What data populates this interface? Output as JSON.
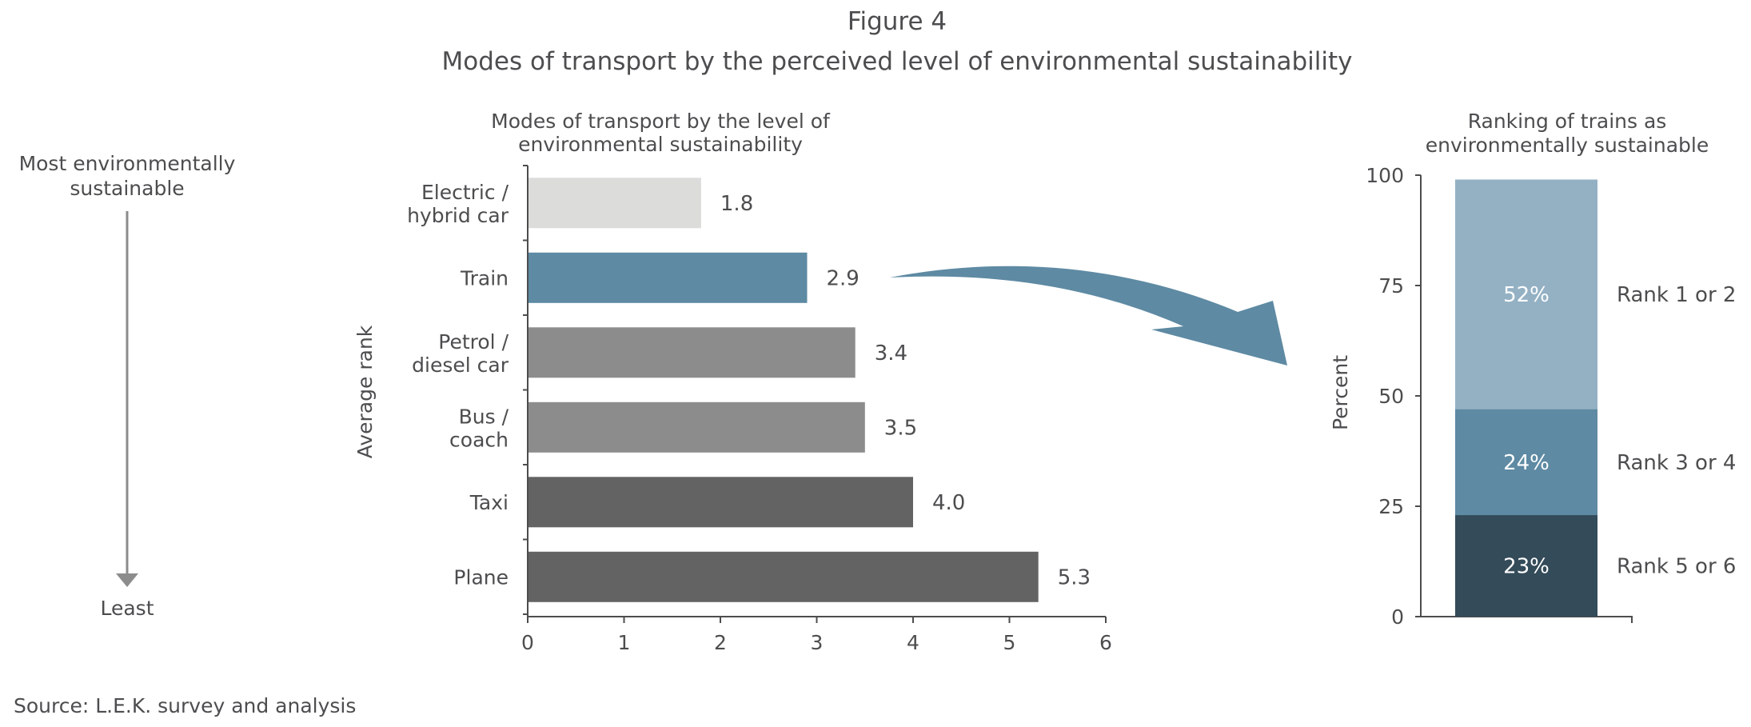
{
  "header": {
    "figure_label": "Figure 4",
    "title": "Modes of transport by the perceived level of environmental sustainability"
  },
  "scale_indicator": {
    "top_label_line1": "Most environmentally",
    "top_label_line2": "sustainable",
    "bottom_label": "Least"
  },
  "source": "Source: L.E.K. survey and analysis",
  "colors": {
    "light_grey": "#dcdcdb",
    "train_blue": "#5e8aa3",
    "mid_grey": "#8c8c8c",
    "dark_grey": "#636363",
    "light_blue": "#94b1c4",
    "dark_navy": "#344b59",
    "arrow": "#5e8aa3"
  },
  "chart_data": [
    {
      "type": "bar",
      "orientation": "horizontal",
      "title_line1": "Modes of transport by the level of",
      "title_line2": "environmental sustainability",
      "ylabel": "Average rank",
      "xlabel": "",
      "xlim": [
        0,
        6
      ],
      "xticks": [
        "0",
        "1",
        "2",
        "3",
        "4",
        "5",
        "6"
      ],
      "categories": [
        {
          "line1": "Electric /",
          "line2": "hybrid car"
        },
        {
          "line1": "Train",
          "line2": ""
        },
        {
          "line1": "Petrol /",
          "line2": "diesel car"
        },
        {
          "line1": "Bus /",
          "line2": "coach"
        },
        {
          "line1": "Taxi",
          "line2": ""
        },
        {
          "line1": "Plane",
          "line2": ""
        }
      ],
      "values": [
        1.8,
        2.9,
        3.4,
        3.5,
        4.0,
        5.3
      ],
      "value_labels": [
        "1.8",
        "2.9",
        "3.4",
        "3.5",
        "4.0",
        "5.3"
      ],
      "bar_colors": [
        "light_grey",
        "train_blue",
        "mid_grey",
        "mid_grey",
        "dark_grey",
        "dark_grey"
      ],
      "grid": false
    },
    {
      "type": "bar",
      "stacked": true,
      "title_line1": "Ranking of trains as",
      "title_line2": "environmentally sustainable",
      "ylabel": "Percent",
      "ylim": [
        0,
        100
      ],
      "yticks": [
        "0",
        "25",
        "50",
        "75",
        "100"
      ],
      "series": [
        {
          "name": "Rank 5 or 6",
          "value": 23,
          "label": "23%",
          "color": "dark_navy"
        },
        {
          "name": "Rank 3 or 4",
          "value": 24,
          "label": "24%",
          "color": "train_blue"
        },
        {
          "name": "Rank 1 or 2",
          "value": 52,
          "label": "52%",
          "color": "light_blue"
        }
      ],
      "grid": false
    }
  ]
}
